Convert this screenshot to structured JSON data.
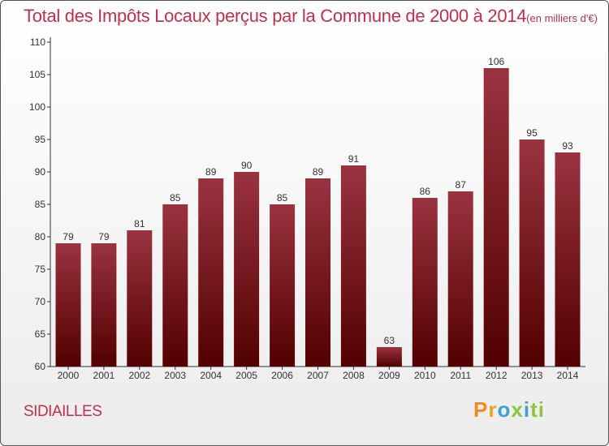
{
  "title": "Total des Impôts Locaux perçus par la Commune de 2000 à 2014",
  "subtitle": "(en milliers d'€)",
  "commune": "SIDIAILLES",
  "brand": {
    "letters": [
      "P",
      "r",
      "o",
      "x",
      "i",
      "t",
      "i"
    ]
  },
  "colors": {
    "title": "#c0304c",
    "bar_top": "#9a3340",
    "bar_bottom": "#520000",
    "axis": "#333333"
  },
  "chart_data": {
    "type": "bar",
    "title": "Total des Impôts Locaux perçus par la Commune de 2000 à 2014",
    "subtitle": "(en milliers d'€)",
    "xlabel": "",
    "ylabel": "",
    "categories": [
      "2000",
      "2001",
      "2002",
      "2003",
      "2004",
      "2005",
      "2006",
      "2007",
      "2008",
      "2009",
      "2010",
      "2011",
      "2012",
      "2013",
      "2014"
    ],
    "values": [
      79,
      79,
      81,
      85,
      89,
      90,
      85,
      89,
      91,
      63,
      86,
      87,
      106,
      95,
      93
    ],
    "ylim": [
      60,
      110
    ],
    "yticks": [
      60,
      65,
      70,
      75,
      80,
      85,
      90,
      95,
      100,
      105,
      110
    ],
    "grid": false,
    "data_labels": true
  }
}
